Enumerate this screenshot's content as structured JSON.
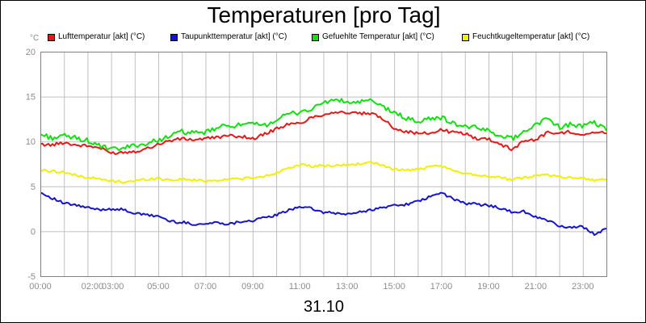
{
  "title": "Temperaturen [pro Tag]",
  "date_label": "31.10",
  "y_unit": "°C",
  "colors": {
    "grid": "#c0c0c0",
    "axis_text": "#8c8c8c",
    "background": "#ffffff"
  },
  "legend": [
    {
      "label": "Lufttemperatur [akt] (°C)",
      "color": "#e81818"
    },
    {
      "label": "Taupunkttemperatur [akt] (°C)",
      "color": "#1414d0"
    },
    {
      "label": "Gefuehlte Temperatur [akt] (°C)",
      "color": "#10e010"
    },
    {
      "label": "Feuchtkugeltemperatur [akt] (°C)",
      "color": "#f0f000"
    }
  ],
  "chart_data": {
    "type": "line",
    "title": "Temperaturen [pro Tag]",
    "xlabel": "31.10",
    "ylabel": "°C",
    "ylim": [
      -5,
      20
    ],
    "y_ticks": [
      -5,
      0,
      5,
      10,
      15,
      20
    ],
    "xlim": [
      0,
      24
    ],
    "x_ticks": [
      {
        "x": 0,
        "label": "00:00"
      },
      {
        "x": 2,
        "label": "02:00"
      },
      {
        "x": 3,
        "label": "03:00"
      },
      {
        "x": 5,
        "label": "05:00"
      },
      {
        "x": 7,
        "label": "07:00"
      },
      {
        "x": 9,
        "label": "09:00"
      },
      {
        "x": 11,
        "label": "11:00"
      },
      {
        "x": 13,
        "label": "13:00"
      },
      {
        "x": 15,
        "label": "15:00"
      },
      {
        "x": 17,
        "label": "17:00"
      },
      {
        "x": 19,
        "label": "19:00"
      },
      {
        "x": 21,
        "label": "21:00"
      },
      {
        "x": 23,
        "label": "23:00"
      }
    ],
    "grid": true,
    "x": [
      0,
      0.5,
      1,
      1.5,
      2,
      2.5,
      3,
      3.5,
      4,
      4.5,
      5,
      5.5,
      6,
      6.5,
      7,
      7.5,
      8,
      8.5,
      9,
      9.5,
      10,
      10.5,
      11,
      11.5,
      12,
      12.5,
      13,
      13.5,
      14,
      14.5,
      15,
      15.5,
      16,
      16.5,
      17,
      17.5,
      18,
      18.5,
      19,
      19.5,
      20,
      20.5,
      21,
      21.5,
      22,
      22.5,
      23,
      23.5,
      24
    ],
    "series": [
      {
        "name": "Lufttemperatur [akt] (°C)",
        "color": "#e81818",
        "values": [
          9.7,
          9.6,
          9.9,
          9.6,
          9.5,
          9.3,
          8.7,
          8.8,
          8.9,
          9.2,
          9.7,
          10.1,
          10.3,
          10.2,
          10.3,
          10.5,
          10.6,
          10.6,
          10.3,
          10.8,
          11.4,
          11.9,
          12.0,
          12.7,
          13.0,
          13.3,
          13.2,
          13.1,
          13.1,
          12.6,
          11.5,
          11.1,
          10.9,
          10.9,
          11.3,
          11.0,
          10.9,
          10.3,
          10.3,
          9.7,
          9.1,
          10.1,
          10.2,
          11.0,
          10.9,
          11.1,
          10.8,
          11.0,
          10.9
        ]
      },
      {
        "name": "Taupunkttemperatur [akt] (°C)",
        "color": "#1414d0",
        "values": [
          4.3,
          3.7,
          3.1,
          2.9,
          2.6,
          2.4,
          2.5,
          2.4,
          2.0,
          1.8,
          1.7,
          1.1,
          1.0,
          0.8,
          0.8,
          1.0,
          0.8,
          1.1,
          1.2,
          1.5,
          1.8,
          2.3,
          2.8,
          2.5,
          2.1,
          2.0,
          1.9,
          2.1,
          2.4,
          2.6,
          2.9,
          3.0,
          3.3,
          3.8,
          4.3,
          3.6,
          3.1,
          3.0,
          2.9,
          2.6,
          2.1,
          2.2,
          1.6,
          1.2,
          0.6,
          0.4,
          0.5,
          -0.3,
          0.3
        ]
      },
      {
        "name": "Gefuehlte Temperatur [akt] (°C)",
        "color": "#10e010",
        "values": [
          10.8,
          10.4,
          10.6,
          10.4,
          10.1,
          9.5,
          9.1,
          9.2,
          9.6,
          9.7,
          10.2,
          10.6,
          11.1,
          10.9,
          11.0,
          11.5,
          11.8,
          11.8,
          11.9,
          11.8,
          12.4,
          13.0,
          13.3,
          13.6,
          14.3,
          14.7,
          14.3,
          14.4,
          14.5,
          13.9,
          13.2,
          12.6,
          12.2,
          12.5,
          12.7,
          12.0,
          11.7,
          11.5,
          11.2,
          10.7,
          10.3,
          11.1,
          11.9,
          12.6,
          11.6,
          11.9,
          11.7,
          12.1,
          11.2
        ]
      },
      {
        "name": "Feuchtkugeltemperatur [akt] (°C)",
        "color": "#f0f000",
        "values": [
          6.8,
          6.7,
          6.6,
          6.2,
          6.0,
          5.8,
          5.6,
          5.5,
          5.6,
          5.8,
          5.9,
          5.7,
          5.8,
          5.7,
          5.6,
          5.7,
          5.8,
          5.9,
          5.9,
          6.1,
          6.5,
          7.1,
          7.4,
          7.2,
          7.3,
          7.3,
          7.4,
          7.5,
          7.6,
          7.4,
          6.9,
          6.8,
          6.9,
          7.1,
          7.3,
          6.7,
          6.5,
          6.3,
          6.1,
          6.0,
          5.7,
          6.0,
          6.2,
          6.3,
          6.1,
          6.0,
          5.9,
          5.7,
          5.8
        ]
      }
    ]
  }
}
